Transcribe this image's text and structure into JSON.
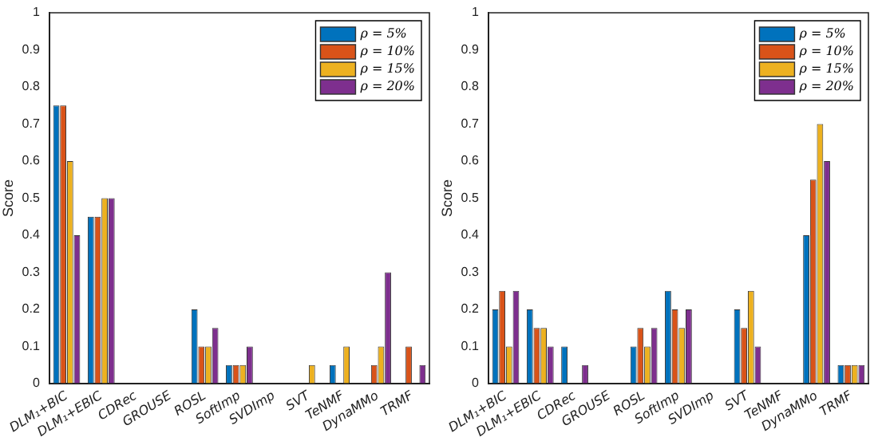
{
  "chart_data": [
    {
      "type": "bar",
      "ylabel": "Score",
      "categories": [
        "DLM₁+BIC",
        "DLM₁+EBIC",
        "CDRec",
        "GROUSE",
        "ROSL",
        "SoftImp",
        "SVDImp",
        "SVT",
        "TeNMF",
        "DynaMMo",
        "TRMF"
      ],
      "series": [
        {
          "name": "ρ = 5%",
          "color": "#0072bd",
          "values": [
            0.75,
            0.45,
            0,
            0,
            0.2,
            0.05,
            0,
            0,
            0.05,
            0,
            0
          ]
        },
        {
          "name": "ρ = 10%",
          "color": "#d95319",
          "values": [
            0.75,
            0.45,
            0,
            0,
            0.1,
            0.05,
            0,
            0,
            0,
            0.05,
            0.1
          ]
        },
        {
          "name": "ρ = 15%",
          "color": "#edb120",
          "values": [
            0.6,
            0.5,
            0,
            0,
            0.1,
            0.05,
            0,
            0.05,
            0.1,
            0.1,
            0
          ]
        },
        {
          "name": "ρ = 20%",
          "color": "#7e2f8e",
          "values": [
            0.4,
            0.5,
            0,
            0,
            0.15,
            0.1,
            0,
            0,
            0,
            0.3,
            0.05
          ]
        }
      ],
      "ylim": [
        0,
        1
      ],
      "yticks": [
        0,
        0.1,
        0.2,
        0.3,
        0.4,
        0.5,
        0.6,
        0.7,
        0.8,
        0.9,
        1
      ],
      "grid": false,
      "legend": "top right"
    },
    {
      "type": "bar",
      "ylabel": "Score",
      "categories": [
        "DLM₁+BIC",
        "DLM₁+EBIC",
        "CDRec",
        "GROUSE",
        "ROSL",
        "SoftImp",
        "SVDImp",
        "SVT",
        "TeNMF",
        "DynaMMo",
        "TRMF"
      ],
      "series": [
        {
          "name": "ρ = 5%",
          "color": "#0072bd",
          "values": [
            0.2,
            0.2,
            0.1,
            0,
            0.1,
            0.25,
            0,
            0.2,
            0,
            0.4,
            0.05
          ]
        },
        {
          "name": "ρ = 10%",
          "color": "#d95319",
          "values": [
            0.25,
            0.15,
            0,
            0,
            0.15,
            0.2,
            0,
            0.15,
            0,
            0.55,
            0.05
          ]
        },
        {
          "name": "ρ = 15%",
          "color": "#edb120",
          "values": [
            0.1,
            0.15,
            0,
            0,
            0.1,
            0.15,
            0,
            0.25,
            0,
            0.7,
            0.05
          ]
        },
        {
          "name": "ρ = 20%",
          "color": "#7e2f8e",
          "values": [
            0.25,
            0.1,
            0.05,
            0,
            0.15,
            0.2,
            0,
            0.1,
            0,
            0.6,
            0.05
          ]
        }
      ],
      "ylim": [
        0,
        1
      ],
      "yticks": [
        0,
        0.1,
        0.2,
        0.3,
        0.4,
        0.5,
        0.6,
        0.7,
        0.8,
        0.9,
        1
      ],
      "grid": false,
      "legend": "top right"
    }
  ]
}
